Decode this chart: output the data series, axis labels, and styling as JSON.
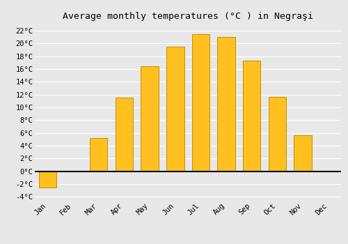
{
  "months": [
    "Jan",
    "Feb",
    "Mar",
    "Apr",
    "May",
    "Jun",
    "Jul",
    "Aug",
    "Sep",
    "Oct",
    "Nov",
    "Dec"
  ],
  "temperatures": [
    -2.5,
    0.0,
    5.2,
    11.5,
    16.5,
    19.5,
    21.5,
    21.0,
    17.3,
    11.7,
    5.7,
    0.0
  ],
  "bar_color": "#FFC020",
  "bar_edge_color": "#C09000",
  "title": "Average monthly temperatures (°C ) in Negraşi",
  "title_fontsize": 9.5,
  "ylim": [
    -4.5,
    23
  ],
  "yticks": [
    -4,
    -2,
    0,
    2,
    4,
    6,
    8,
    10,
    12,
    14,
    16,
    18,
    20,
    22
  ],
  "background_color": "#e8e8e8",
  "grid_color": "#ffffff",
  "zero_line_color": "#000000",
  "tick_label_fontsize": 7.5,
  "font_family": "monospace",
  "bar_width": 0.7
}
